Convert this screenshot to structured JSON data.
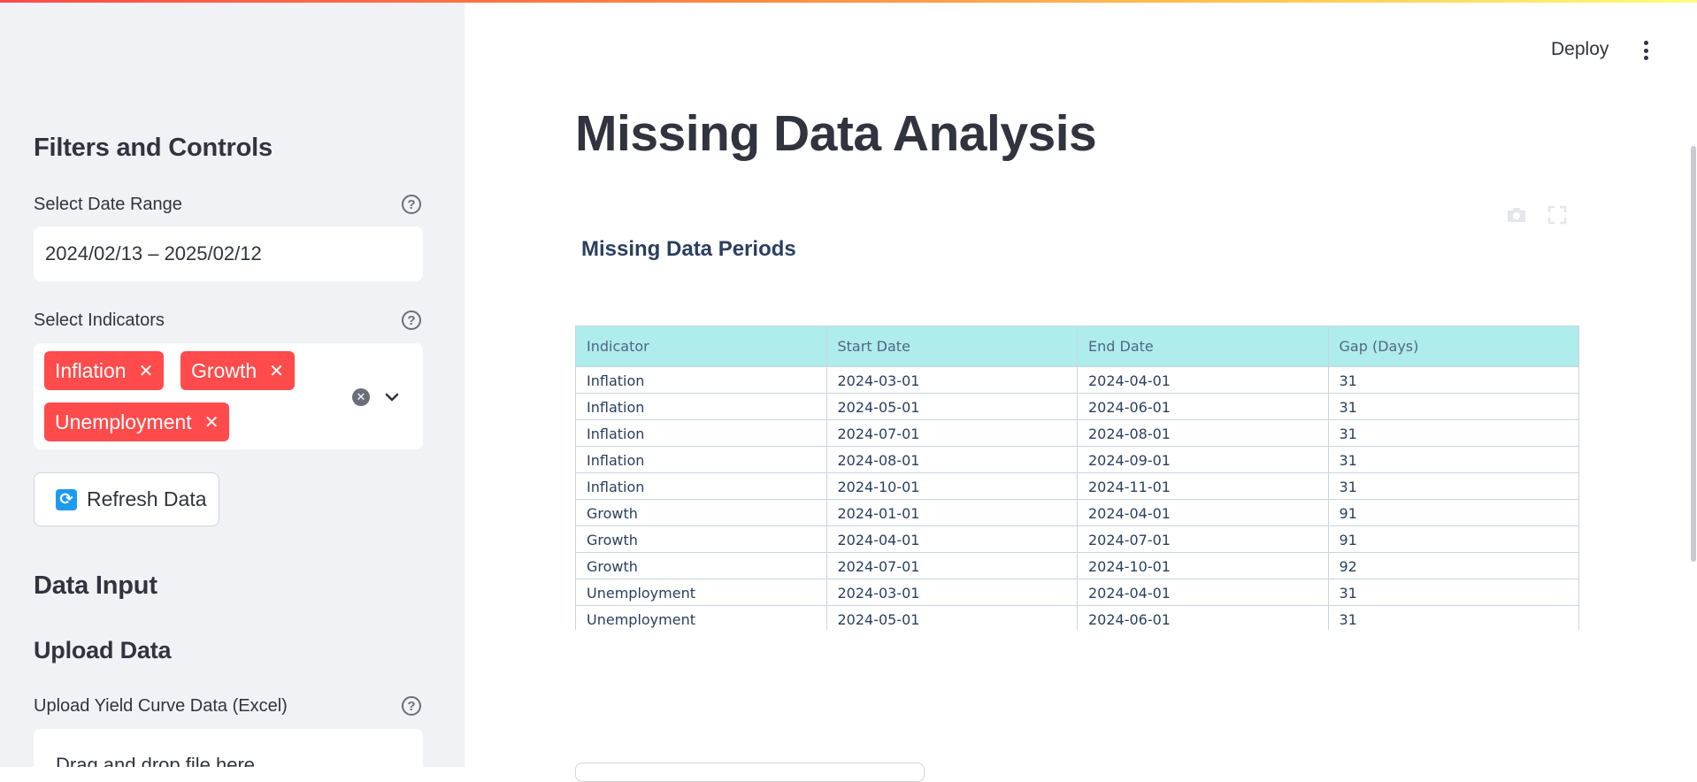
{
  "header": {
    "deploy_label": "Deploy",
    "menu_icon": "kebab-menu-icon"
  },
  "sidebar": {
    "filters_heading": "Filters and Controls",
    "date_range": {
      "label": "Select Date Range",
      "value": "2024/02/13 – 2025/02/12"
    },
    "indicators": {
      "label": "Select Indicators",
      "selected": [
        "Inflation",
        "Growth",
        "Unemployment"
      ],
      "tag_remove_glyph": "✕"
    },
    "refresh_button_label": "Refresh Data",
    "data_input_heading": "Data Input",
    "upload_heading": "Upload Data",
    "upload_label": "Upload Yield Curve Data (Excel)",
    "dropzone_text": "Drag and drop file here"
  },
  "main": {
    "title": "Missing Data Analysis",
    "figure_title": "Missing Data Periods",
    "table": {
      "columns": [
        "Indicator",
        "Start Date",
        "End Date",
        "Gap (Days)"
      ],
      "rows": [
        [
          "Inflation",
          "2024-03-01",
          "2024-04-01",
          "31"
        ],
        [
          "Inflation",
          "2024-05-01",
          "2024-06-01",
          "31"
        ],
        [
          "Inflation",
          "2024-07-01",
          "2024-08-01",
          "31"
        ],
        [
          "Inflation",
          "2024-08-01",
          "2024-09-01",
          "31"
        ],
        [
          "Inflation",
          "2024-10-01",
          "2024-11-01",
          "31"
        ],
        [
          "Growth",
          "2024-01-01",
          "2024-04-01",
          "91"
        ],
        [
          "Growth",
          "2024-04-01",
          "2024-07-01",
          "91"
        ],
        [
          "Growth",
          "2024-07-01",
          "2024-10-01",
          "92"
        ],
        [
          "Unemployment",
          "2024-03-01",
          "2024-04-01",
          "31"
        ],
        [
          "Unemployment",
          "2024-05-01",
          "2024-06-01",
          "31"
        ]
      ]
    }
  },
  "colors": {
    "accent": "#ff4b4b",
    "table_header_bg": "#afecec",
    "sidebar_bg": "#f0f2f6"
  }
}
